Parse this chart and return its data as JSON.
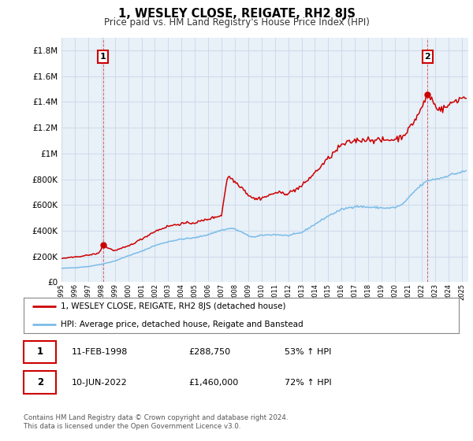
{
  "title": "1, WESLEY CLOSE, REIGATE, RH2 8JS",
  "subtitle": "Price paid vs. HM Land Registry's House Price Index (HPI)",
  "ytick_labels": [
    "£0",
    "£200K",
    "£400K",
    "£600K",
    "£800K",
    "£1M",
    "£1.2M",
    "£1.4M",
    "£1.6M",
    "£1.8M"
  ],
  "ytick_values": [
    0,
    200000,
    400000,
    600000,
    800000,
    1000000,
    1200000,
    1400000,
    1600000,
    1800000
  ],
  "ylim": [
    0,
    1900000
  ],
  "xlim_start": 1995.0,
  "xlim_end": 2025.5,
  "hpi_color": "#7bbce8",
  "price_color": "#cc0000",
  "marker1_date": 1998.12,
  "marker1_price": 288750,
  "marker2_date": 2022.44,
  "marker2_price": 1460000,
  "legend_label1": "1, WESLEY CLOSE, REIGATE, RH2 8JS (detached house)",
  "legend_label2": "HPI: Average price, detached house, Reigate and Banstead",
  "table_row1": [
    "1",
    "11-FEB-1998",
    "£288,750",
    "53% ↑ HPI"
  ],
  "table_row2": [
    "2",
    "10-JUN-2022",
    "£1,460,000",
    "72% ↑ HPI"
  ],
  "footnote": "Contains HM Land Registry data © Crown copyright and database right 2024.\nThis data is licensed under the Open Government Licence v3.0.",
  "bg_color": "#ffffff",
  "plot_bg_color": "#e8f0f8",
  "grid_color": "#c8d8e8"
}
